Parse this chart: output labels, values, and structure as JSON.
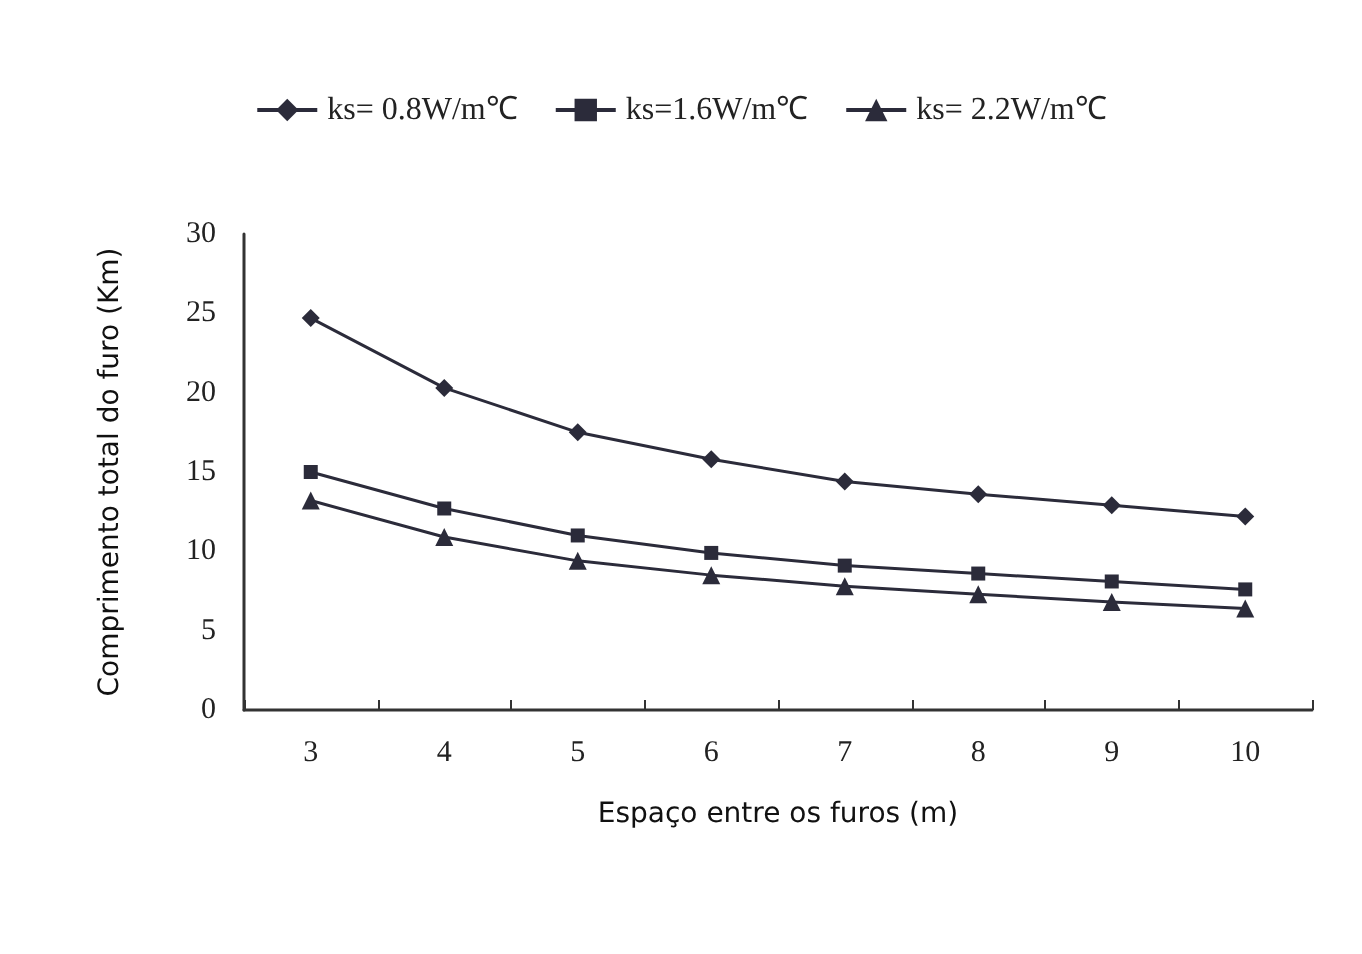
{
  "chart_data": {
    "type": "line",
    "xlabel": "Espaço entre os furos (m)",
    "ylabel": "Comprimento total do furo (Km)",
    "categories": [
      "3",
      "4",
      "5",
      "6",
      "7",
      "8",
      "9",
      "10"
    ],
    "series": [
      {
        "name": "ks= 0.8W/m℃",
        "color": "#2b2b3a",
        "marker": "diamond",
        "values": [
          24.7,
          20.3,
          17.5,
          15.8,
          14.4,
          13.6,
          12.9,
          12.2
        ]
      },
      {
        "name": "ks=1.6W/m℃",
        "color": "#2b2b3a",
        "marker": "square",
        "values": [
          15.0,
          12.7,
          11.0,
          9.9,
          9.1,
          8.6,
          8.1,
          7.6
        ]
      },
      {
        "name": "ks= 2.2W/m℃",
        "color": "#2b2b3a",
        "marker": "triangle",
        "values": [
          13.2,
          10.9,
          9.4,
          8.5,
          7.8,
          7.3,
          6.8,
          6.4
        ]
      }
    ],
    "ylim": [
      0,
      30
    ],
    "yticks": [
      0,
      5,
      10,
      15,
      20,
      25,
      30
    ],
    "grid": false,
    "legend": "top",
    "line_style": "solid"
  }
}
